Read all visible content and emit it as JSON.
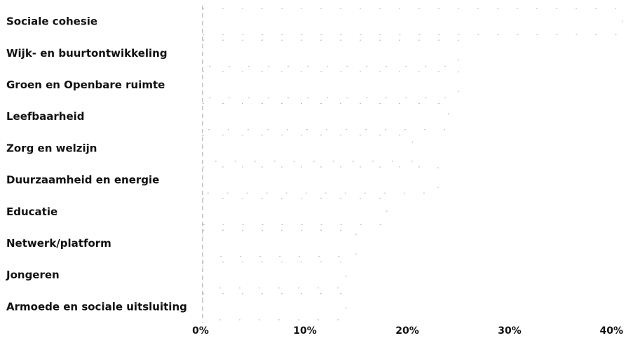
{
  "chart_data": {
    "type": "bar",
    "orientation": "horizontal",
    "categories": [
      "Sociale cohesie",
      "Wijk- en buurtontwikkeling",
      "Groen en Openbare ruimte",
      "Leefbaarheid",
      "Zorg en welzijn",
      "Duurzaamheid en energie",
      "Educatie",
      "Netwerk/platform",
      "Jongeren",
      "Armoede en sociale uitsluiting"
    ],
    "values": [
      41,
      25,
      25,
      24,
      20.5,
      23,
      18,
      15,
      14,
      14
    ],
    "xlim": [
      0,
      41
    ],
    "xticks": [
      0,
      10,
      20,
      30,
      40
    ],
    "xtick_labels": [
      "0%",
      "10%",
      "20%",
      "30%",
      "40%"
    ],
    "grid": false,
    "bar_style": "faint dotted outline",
    "colors": {
      "label": "#111111",
      "bar_outline": "#b5b5b5",
      "axis": "#9a9a9a"
    }
  }
}
